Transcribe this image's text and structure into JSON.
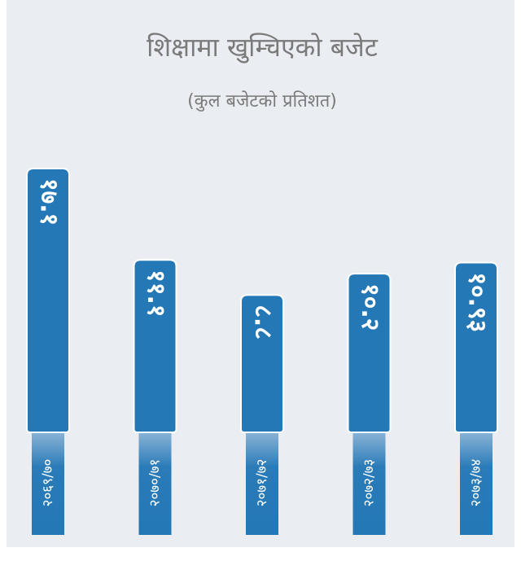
{
  "chart_data": {
    "type": "bar",
    "title": "शिक्षामा खुम्चिएको बजेट",
    "subtitle": "(कुल बजेटको प्रतिशत)",
    "categories": [
      "२०६९/७०",
      "२०७०/७१",
      "२०७१/७२",
      "२०७२/७३",
      "२०७३/७४"
    ],
    "values": [
      17.1,
      11.1,
      8.8,
      10.2,
      10.93
    ],
    "value_labels": [
      "१७.१",
      "११.१",
      "८.८",
      "१०.२",
      "१०.९३"
    ],
    "color": "#2378b5"
  }
}
